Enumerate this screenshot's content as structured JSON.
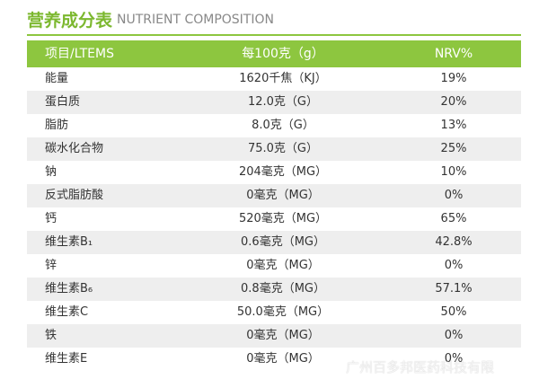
{
  "title": "营养成分表",
  "subtitle": "NUTRIENT COMPOSITION",
  "table": {
    "header": [
      "项目/LTEMS",
      "每100克（g）",
      "NRV%"
    ],
    "rows": [
      [
        "能量",
        "1620千焦（KJ）",
        "19%"
      ],
      [
        "蛋白质",
        "12.0克（G）",
        "20%"
      ],
      [
        "脂肪",
        "8.0克（G）",
        "13%"
      ],
      [
        "碳水化合物",
        "75.0克（G）",
        "25%"
      ],
      [
        "钠",
        "204毫克（MG）",
        "10%"
      ],
      [
        "反式脂肪酸",
        "0毫克（MG）",
        "0%"
      ],
      [
        "钙",
        "520毫克（MG）",
        "65%"
      ],
      [
        "维生素B₁",
        "0.6毫克（MG）",
        "42.8%"
      ],
      [
        "锌",
        "0毫克（MG）",
        "0%"
      ],
      [
        "维生素B₆",
        "0.8毫克（MG）",
        "57.1%"
      ],
      [
        "维生素C",
        "50.0毫克（MG）",
        "50%"
      ],
      [
        "铁",
        "0毫克（MG）",
        "0%"
      ],
      [
        "维生素E",
        "0毫克（MG）",
        "0%"
      ]
    ]
  },
  "watermark": "广州百多邦医药科技有限"
}
